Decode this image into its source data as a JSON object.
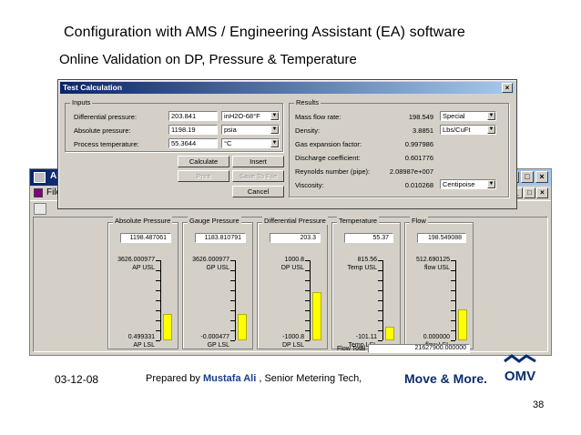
{
  "slide": {
    "title": "Configuration with AMS / Engineering Assistant (EA) software",
    "subtitle": "Online Validation on DP, Pressure & Temperature"
  },
  "bg_window": {
    "title": "AMS",
    "menu_file": "File"
  },
  "gauges": [
    {
      "title": "Absolute Pressure",
      "value": "1198.487061",
      "usl": "3626.000977",
      "usl_label": "AP USL",
      "lsl": "0.499331",
      "lsl_label": "AP LSL",
      "fill_fraction": 0.33
    },
    {
      "title": "Gauge Pressure",
      "value": "1183.810791",
      "usl": "3626.000977",
      "usl_label": "GP USL",
      "lsl": "-0.000477",
      "lsl_label": "GP LSL",
      "fill_fraction": 0.33
    },
    {
      "title": "Differential Pressure",
      "value": "203.3",
      "usl": "1000.8",
      "usl_label": "DP USL",
      "lsl": "-1000.8",
      "lsl_label": "DP LSL",
      "fill_fraction": 0.6
    },
    {
      "title": "Temperature",
      "value": "55.37",
      "usl": "815.56",
      "usl_label": "Temp USL",
      "lsl": "-101.11",
      "lsl_label": "Temp LSL",
      "fill_fraction": 0.17
    },
    {
      "title": "Flow",
      "value": "198.549088",
      "usl": "512.690125",
      "usl_label": "flow USL",
      "lsl": "0.000000",
      "lsl_label": "flow LSL",
      "fill_fraction": 0.39
    }
  ],
  "flow_total": {
    "label": "Flow Total",
    "value": "21627900.000000"
  },
  "dialog": {
    "title": "Test Calculation",
    "inputs_label": "Inputs",
    "results_label": "Results",
    "inputs": [
      {
        "label": "Differential pressure:",
        "value": "203.841",
        "unit": "inH2O-68°F"
      },
      {
        "label": "Absolute pressure:",
        "value": "1198.19",
        "unit": "psia"
      },
      {
        "label": "Process temperature:",
        "value": "55.3644",
        "unit": "°C"
      }
    ],
    "results": [
      {
        "label": "Mass flow rate:",
        "value": "198.549",
        "unit": "Special"
      },
      {
        "label": "Density:",
        "value": "3.8851",
        "unit": "Lbs/CuFt"
      },
      {
        "label": "Gas expansion factor:",
        "value": "0.997986",
        "unit": ""
      },
      {
        "label": "Discharge coefficient:",
        "value": "0.601776",
        "unit": ""
      },
      {
        "label": "Reynolds number (pipe):",
        "value": "2.08987e+007",
        "unit": ""
      },
      {
        "label": "Viscosity:",
        "value": "0.010268",
        "unit": "Centipoise"
      }
    ],
    "buttons": {
      "calculate": "Calculate",
      "insert": "Insert",
      "print": "Print",
      "save_to_file": "Save To File",
      "cancel": "Cancel"
    }
  },
  "footer": {
    "date": "03-12-08",
    "prepared_prefix": "Prepared by",
    "author": "Mustafa Ali",
    "role": ", Senior Metering Tech,",
    "slogan": "Move & More.",
    "logo_text": "OMV",
    "page": "38"
  },
  "colors": {
    "titlebar_start": "#0a246a",
    "titlebar_end": "#a6caf0",
    "window_face": "#d4d0c8",
    "gauge_fill": "#ffff00",
    "brand_blue": "#0b2d6e"
  }
}
